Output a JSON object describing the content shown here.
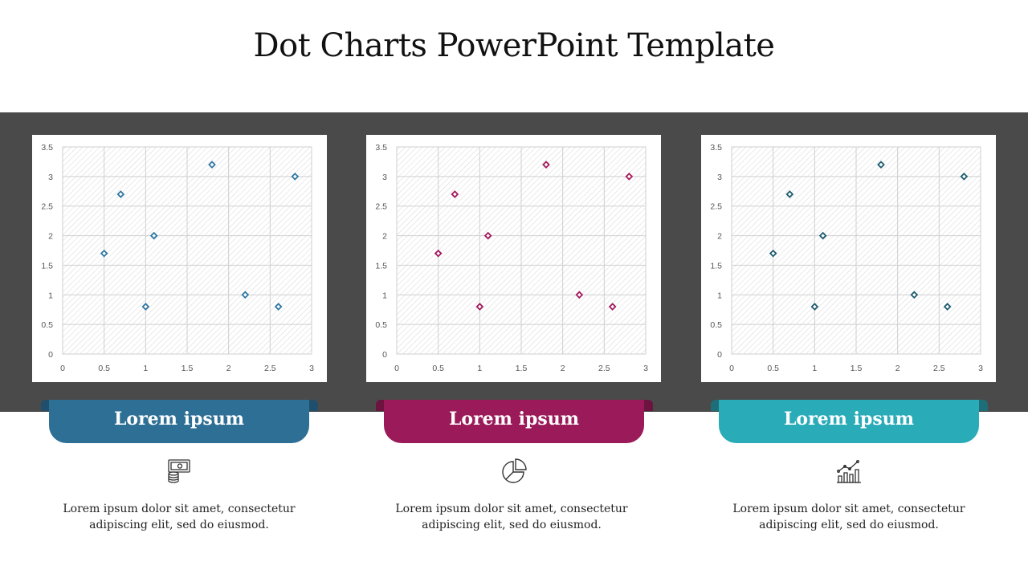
{
  "title": "Dot Charts PowerPoint Template",
  "colors": {
    "band": "#4a4a4a",
    "tab1": "#2e6f96",
    "tab2": "#9b1b5a",
    "tab3": "#2aabb8",
    "marker1": "#3178a3",
    "marker2": "#a3195b",
    "marker3": "#205c70"
  },
  "chart_data": [
    {
      "type": "scatter",
      "xlim": [
        0,
        3
      ],
      "ylim": [
        0,
        3.5
      ],
      "x_ticks": [
        "0",
        "0.5",
        "1",
        "1.5",
        "2",
        "2.5",
        "3"
      ],
      "y_ticks": [
        "0",
        "0.5",
        "1",
        "1.5",
        "2",
        "2.5",
        "3",
        "3.5"
      ],
      "x": [
        0.5,
        0.7,
        1.0,
        1.1,
        1.8,
        2.2,
        2.6,
        2.8
      ],
      "y": [
        1.7,
        2.7,
        0.8,
        2.0,
        3.2,
        1.0,
        0.8,
        3.0
      ],
      "marker": "diamond",
      "grid": true
    },
    {
      "type": "scatter",
      "xlim": [
        0,
        3
      ],
      "ylim": [
        0,
        3.5
      ],
      "x_ticks": [
        "0",
        "0.5",
        "1",
        "1.5",
        "2",
        "2.5",
        "3"
      ],
      "y_ticks": [
        "0",
        "0.5",
        "1",
        "1.5",
        "2",
        "2.5",
        "3",
        "3.5"
      ],
      "x": [
        0.5,
        0.7,
        1.0,
        1.1,
        1.8,
        2.2,
        2.6,
        2.8
      ],
      "y": [
        1.7,
        2.7,
        0.8,
        2.0,
        3.2,
        1.0,
        0.8,
        3.0
      ],
      "marker": "diamond",
      "grid": true
    },
    {
      "type": "scatter",
      "xlim": [
        0,
        3
      ],
      "ylim": [
        0,
        3.5
      ],
      "x_ticks": [
        "0",
        "0.5",
        "1",
        "1.5",
        "2",
        "2.5",
        "3"
      ],
      "y_ticks": [
        "0",
        "0.5",
        "1",
        "1.5",
        "2",
        "2.5",
        "3",
        "3.5"
      ],
      "x": [
        0.5,
        0.7,
        1.0,
        1.1,
        1.8,
        2.2,
        2.6,
        2.8
      ],
      "y": [
        1.7,
        2.7,
        0.8,
        2.0,
        3.2,
        1.0,
        0.8,
        3.0
      ],
      "marker": "diamond",
      "grid": true
    }
  ],
  "sections": [
    {
      "label": "Lorem ipsum",
      "icon": "money-coins-icon",
      "text_line1": "Lorem ipsum dolor sit amet, consectetur",
      "text_line2": "adipiscing elit, sed do eiusmod."
    },
    {
      "label": "Lorem ipsum",
      "icon": "pie-chart-icon",
      "text_line1": "Lorem ipsum dolor sit amet, consectetur",
      "text_line2": "adipiscing elit, sed do eiusmod."
    },
    {
      "label": "Lorem ipsum",
      "icon": "bar-growth-chart-icon",
      "text_line1": "Lorem ipsum dolor sit amet, consectetur",
      "text_line2": "adipiscing elit, sed do eiusmod."
    }
  ]
}
